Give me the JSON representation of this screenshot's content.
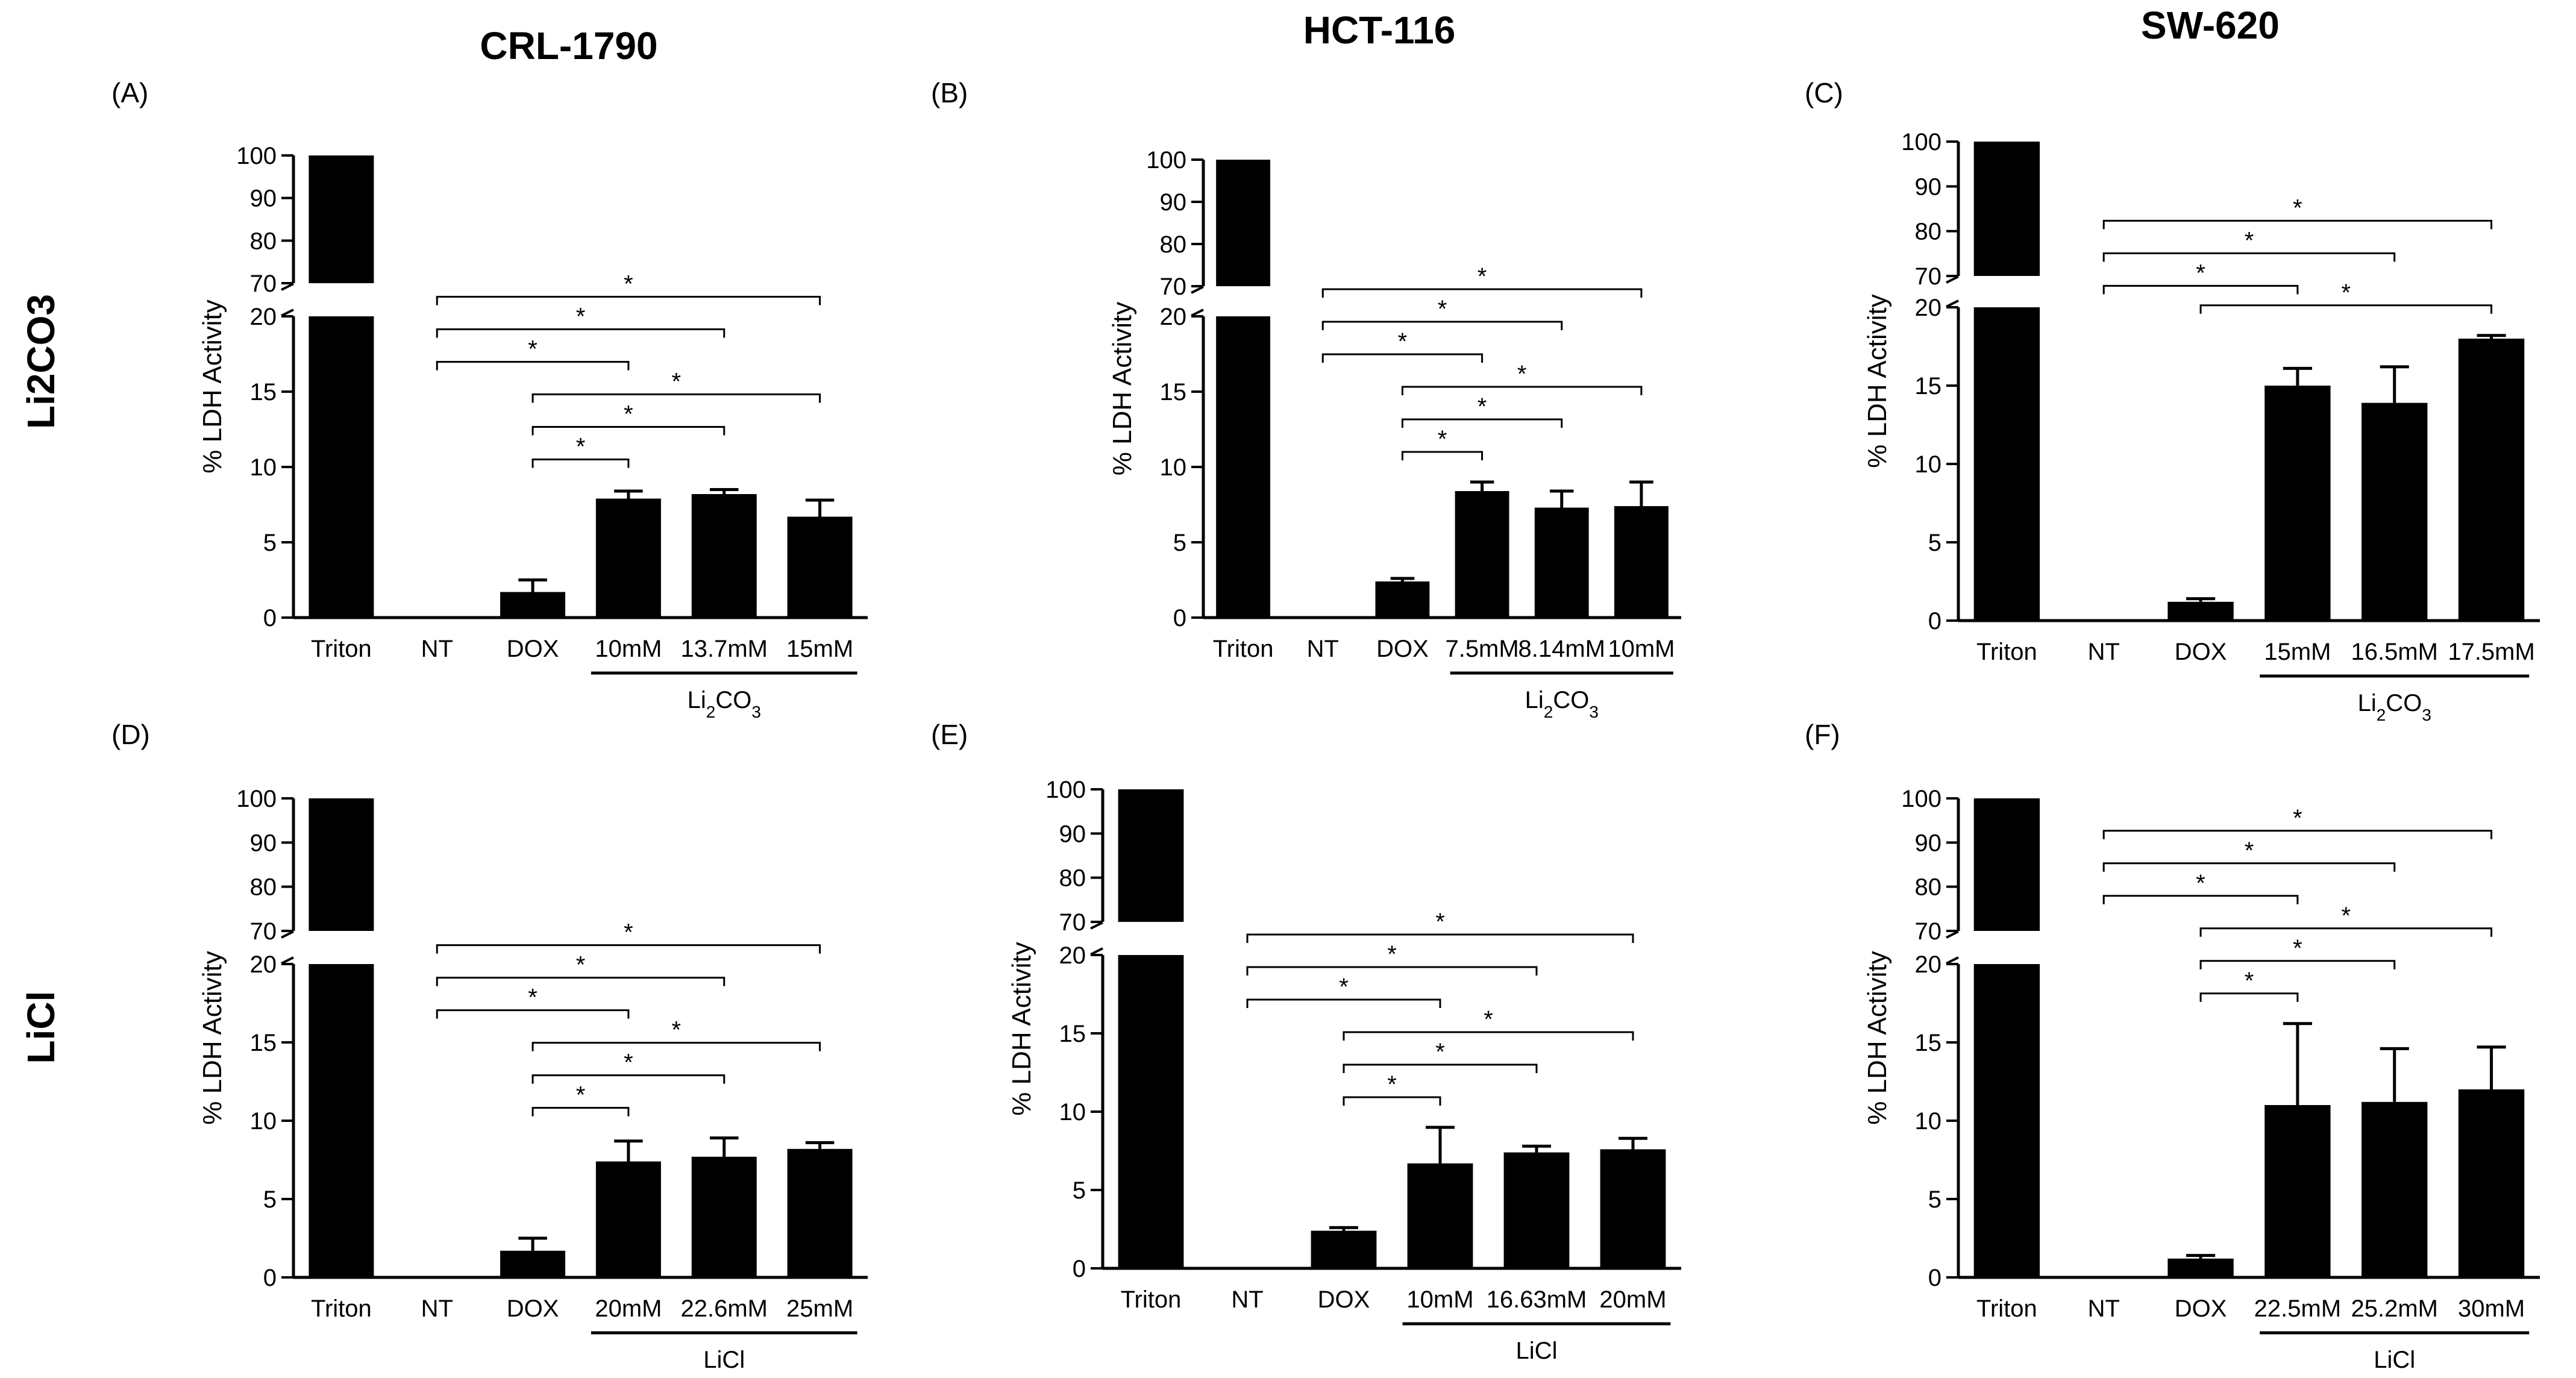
{
  "figure": {
    "column_headers": [
      "CRL-1790",
      "HCT-116",
      "SW-620"
    ],
    "row_headers": [
      "Li2CO3",
      "LiCl"
    ],
    "bar_color": "#000000"
  },
  "chart_data": [
    {
      "type": "bar",
      "panel": "(A)",
      "cell_line": "CRL-1790",
      "treatment": "Li2CO3",
      "ylabel": "% LDH Activity",
      "categories": [
        "Triton",
        "NT",
        "DOX",
        "10mM",
        "13.7mM",
        "15mM"
      ],
      "values": [
        100,
        0,
        1.7,
        7.9,
        8.2,
        6.7
      ],
      "errors": [
        0,
        0,
        0.8,
        0.5,
        0.3,
        1.1
      ],
      "group_label": "Li2CO3",
      "ylim_lower": [
        0,
        20
      ],
      "ylim_upper": [
        70,
        100
      ],
      "yticks_lower": [
        0,
        5,
        10,
        15,
        20
      ],
      "yticks_upper": [
        70,
        80,
        90,
        100
      ],
      "significance": [
        {
          "from": "NT",
          "to": "15mM",
          "label": "*"
        },
        {
          "from": "NT",
          "to": "13.7mM",
          "label": "*"
        },
        {
          "from": "NT",
          "to": "10mM",
          "label": "*"
        },
        {
          "from": "DOX",
          "to": "15mM",
          "label": "*"
        },
        {
          "from": "DOX",
          "to": "13.7mM",
          "label": "*"
        },
        {
          "from": "DOX",
          "to": "10mM",
          "label": "*"
        }
      ]
    },
    {
      "type": "bar",
      "panel": "(B)",
      "cell_line": "HCT-116",
      "treatment": "Li2CO3",
      "ylabel": "% LDH Activity",
      "categories": [
        "Triton",
        "NT",
        "DOX",
        "7.5mM",
        "8.14mM",
        "10mM"
      ],
      "values": [
        100,
        0,
        2.4,
        8.4,
        7.3,
        7.4
      ],
      "errors": [
        0,
        0,
        0.2,
        0.6,
        1.1,
        1.6
      ],
      "group_label": "Li2CO3",
      "ylim_lower": [
        0,
        20
      ],
      "ylim_upper": [
        70,
        100
      ],
      "yticks_lower": [
        0,
        5,
        10,
        15,
        20
      ],
      "yticks_upper": [
        70,
        80,
        90,
        100
      ],
      "significance": [
        {
          "from": "NT",
          "to": "10mM",
          "label": "*"
        },
        {
          "from": "NT",
          "to": "8.14mM",
          "label": "*"
        },
        {
          "from": "NT",
          "to": "7.5mM",
          "label": "*"
        },
        {
          "from": "DOX",
          "to": "10mM",
          "label": "*"
        },
        {
          "from": "DOX",
          "to": "8.14mM",
          "label": "*"
        },
        {
          "from": "DOX",
          "to": "7.5mM",
          "label": "*"
        }
      ]
    },
    {
      "type": "bar",
      "panel": "(C)",
      "cell_line": "SW-620",
      "treatment": "Li2CO3",
      "ylabel": "% LDH Activity",
      "categories": [
        "Triton",
        "NT",
        "DOX",
        "15mM",
        "16.5mM",
        "17.5mM"
      ],
      "values": [
        100,
        0,
        1.2,
        15.0,
        13.9,
        18.0
      ],
      "errors": [
        0,
        0,
        0.2,
        1.1,
        2.3,
        0.2
      ],
      "group_label": "Li2CO3",
      "ylim_lower": [
        0,
        20
      ],
      "ylim_upper": [
        70,
        100
      ],
      "yticks_lower": [
        0,
        5,
        10,
        15,
        20
      ],
      "yticks_upper": [
        70,
        80,
        90,
        100
      ],
      "significance": [
        {
          "from": "NT",
          "to": "17.5mM",
          "label": "*"
        },
        {
          "from": "NT",
          "to": "16.5mM",
          "label": "*"
        },
        {
          "from": "NT",
          "to": "15mM",
          "label": "*"
        },
        {
          "from": "DOX",
          "to": "17.5mM",
          "label": "*"
        }
      ]
    },
    {
      "type": "bar",
      "panel": "(D)",
      "cell_line": "CRL-1790",
      "treatment": "LiCl",
      "ylabel": "% LDH Activity",
      "categories": [
        "Triton",
        "NT",
        "DOX",
        "20mM",
        "22.6mM",
        "25mM"
      ],
      "values": [
        100,
        0,
        1.7,
        7.4,
        7.7,
        8.2
      ],
      "errors": [
        0,
        0,
        0.8,
        1.3,
        1.2,
        0.4
      ],
      "group_label": "LiCl",
      "ylim_lower": [
        0,
        20
      ],
      "ylim_upper": [
        70,
        100
      ],
      "yticks_lower": [
        0,
        5,
        10,
        15,
        20
      ],
      "yticks_upper": [
        70,
        80,
        90,
        100
      ],
      "significance": [
        {
          "from": "NT",
          "to": "25mM",
          "label": "*"
        },
        {
          "from": "NT",
          "to": "22.6mM",
          "label": "*"
        },
        {
          "from": "NT",
          "to": "20mM",
          "label": "*"
        },
        {
          "from": "DOX",
          "to": "25mM",
          "label": "*"
        },
        {
          "from": "DOX",
          "to": "22.6mM",
          "label": "*"
        },
        {
          "from": "DOX",
          "to": "20mM",
          "label": "*"
        }
      ]
    },
    {
      "type": "bar",
      "panel": "(E)",
      "cell_line": "HCT-116",
      "treatment": "LiCl",
      "ylabel": "% LDH Activity",
      "categories": [
        "Triton",
        "NT",
        "DOX",
        "10mM",
        "16.63mM",
        "20mM"
      ],
      "values": [
        100,
        0,
        2.4,
        6.7,
        7.4,
        7.6
      ],
      "errors": [
        0,
        0,
        0.2,
        2.3,
        0.4,
        0.7
      ],
      "group_label": "LiCl",
      "ylim_lower": [
        0,
        20
      ],
      "ylim_upper": [
        70,
        100
      ],
      "yticks_lower": [
        0,
        5,
        10,
        15,
        20
      ],
      "yticks_upper": [
        70,
        80,
        90,
        100
      ],
      "significance": [
        {
          "from": "NT",
          "to": "20mM",
          "label": "*"
        },
        {
          "from": "NT",
          "to": "16.63mM",
          "label": "*"
        },
        {
          "from": "NT",
          "to": "10mM",
          "label": "*"
        },
        {
          "from": "DOX",
          "to": "20mM",
          "label": "*"
        },
        {
          "from": "DOX",
          "to": "16.63mM",
          "label": "*"
        },
        {
          "from": "DOX",
          "to": "10mM",
          "label": "*"
        }
      ]
    },
    {
      "type": "bar",
      "panel": "(F)",
      "cell_line": "SW-620",
      "treatment": "LiCl",
      "ylabel": "% LDH Activity",
      "categories": [
        "Triton",
        "NT",
        "DOX",
        "22.5mM",
        "25.2mM",
        "30mM"
      ],
      "values": [
        100,
        0,
        1.2,
        11.0,
        11.2,
        12.0
      ],
      "errors": [
        0,
        0,
        0.2,
        5.2,
        3.4,
        2.7
      ],
      "group_label": "LiCl",
      "ylim_lower": [
        0,
        20
      ],
      "ylim_upper": [
        70,
        100
      ],
      "yticks_lower": [
        0,
        5,
        10,
        15,
        20
      ],
      "yticks_upper": [
        70,
        80,
        90,
        100
      ],
      "significance": [
        {
          "from": "NT",
          "to": "30mM",
          "label": "*"
        },
        {
          "from": "NT",
          "to": "25.2mM",
          "label": "*"
        },
        {
          "from": "NT",
          "to": "22.5mM",
          "label": "*"
        },
        {
          "from": "DOX",
          "to": "30mM",
          "label": "*"
        },
        {
          "from": "DOX",
          "to": "25.2mM",
          "label": "*"
        },
        {
          "from": "DOX",
          "to": "22.5mM",
          "label": "*"
        }
      ]
    }
  ]
}
